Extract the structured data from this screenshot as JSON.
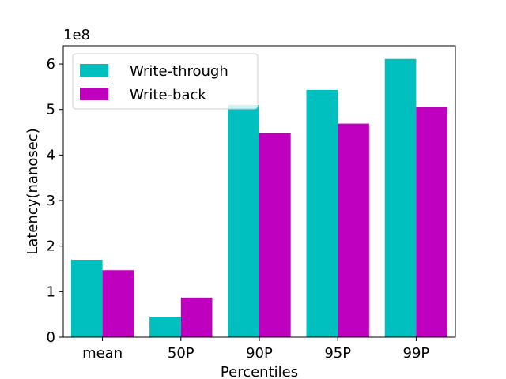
{
  "chart_data": {
    "type": "bar",
    "xlabel": "Percentiles",
    "ylabel": "Latency(nanosec)",
    "y_multiplier_label": "1e8",
    "categories": [
      "mean",
      "50P",
      "90P",
      "95P",
      "99P"
    ],
    "series": [
      {
        "name": "Write-through",
        "color": "#00bfbf",
        "values": [
          170000000,
          45000000,
          510000000,
          543000000,
          611000000
        ]
      },
      {
        "name": "Write-back",
        "color": "#bf00bf",
        "values": [
          147000000,
          87000000,
          448000000,
          469000000,
          505000000
        ]
      }
    ],
    "ylim": [
      0,
      640000000
    ],
    "yticks": [
      0,
      100000000,
      200000000,
      300000000,
      400000000,
      500000000,
      600000000
    ],
    "ytick_labels": [
      "0",
      "1",
      "2",
      "3",
      "4",
      "5",
      "6"
    ],
    "grid": false,
    "legend_position": "upper-left"
  }
}
